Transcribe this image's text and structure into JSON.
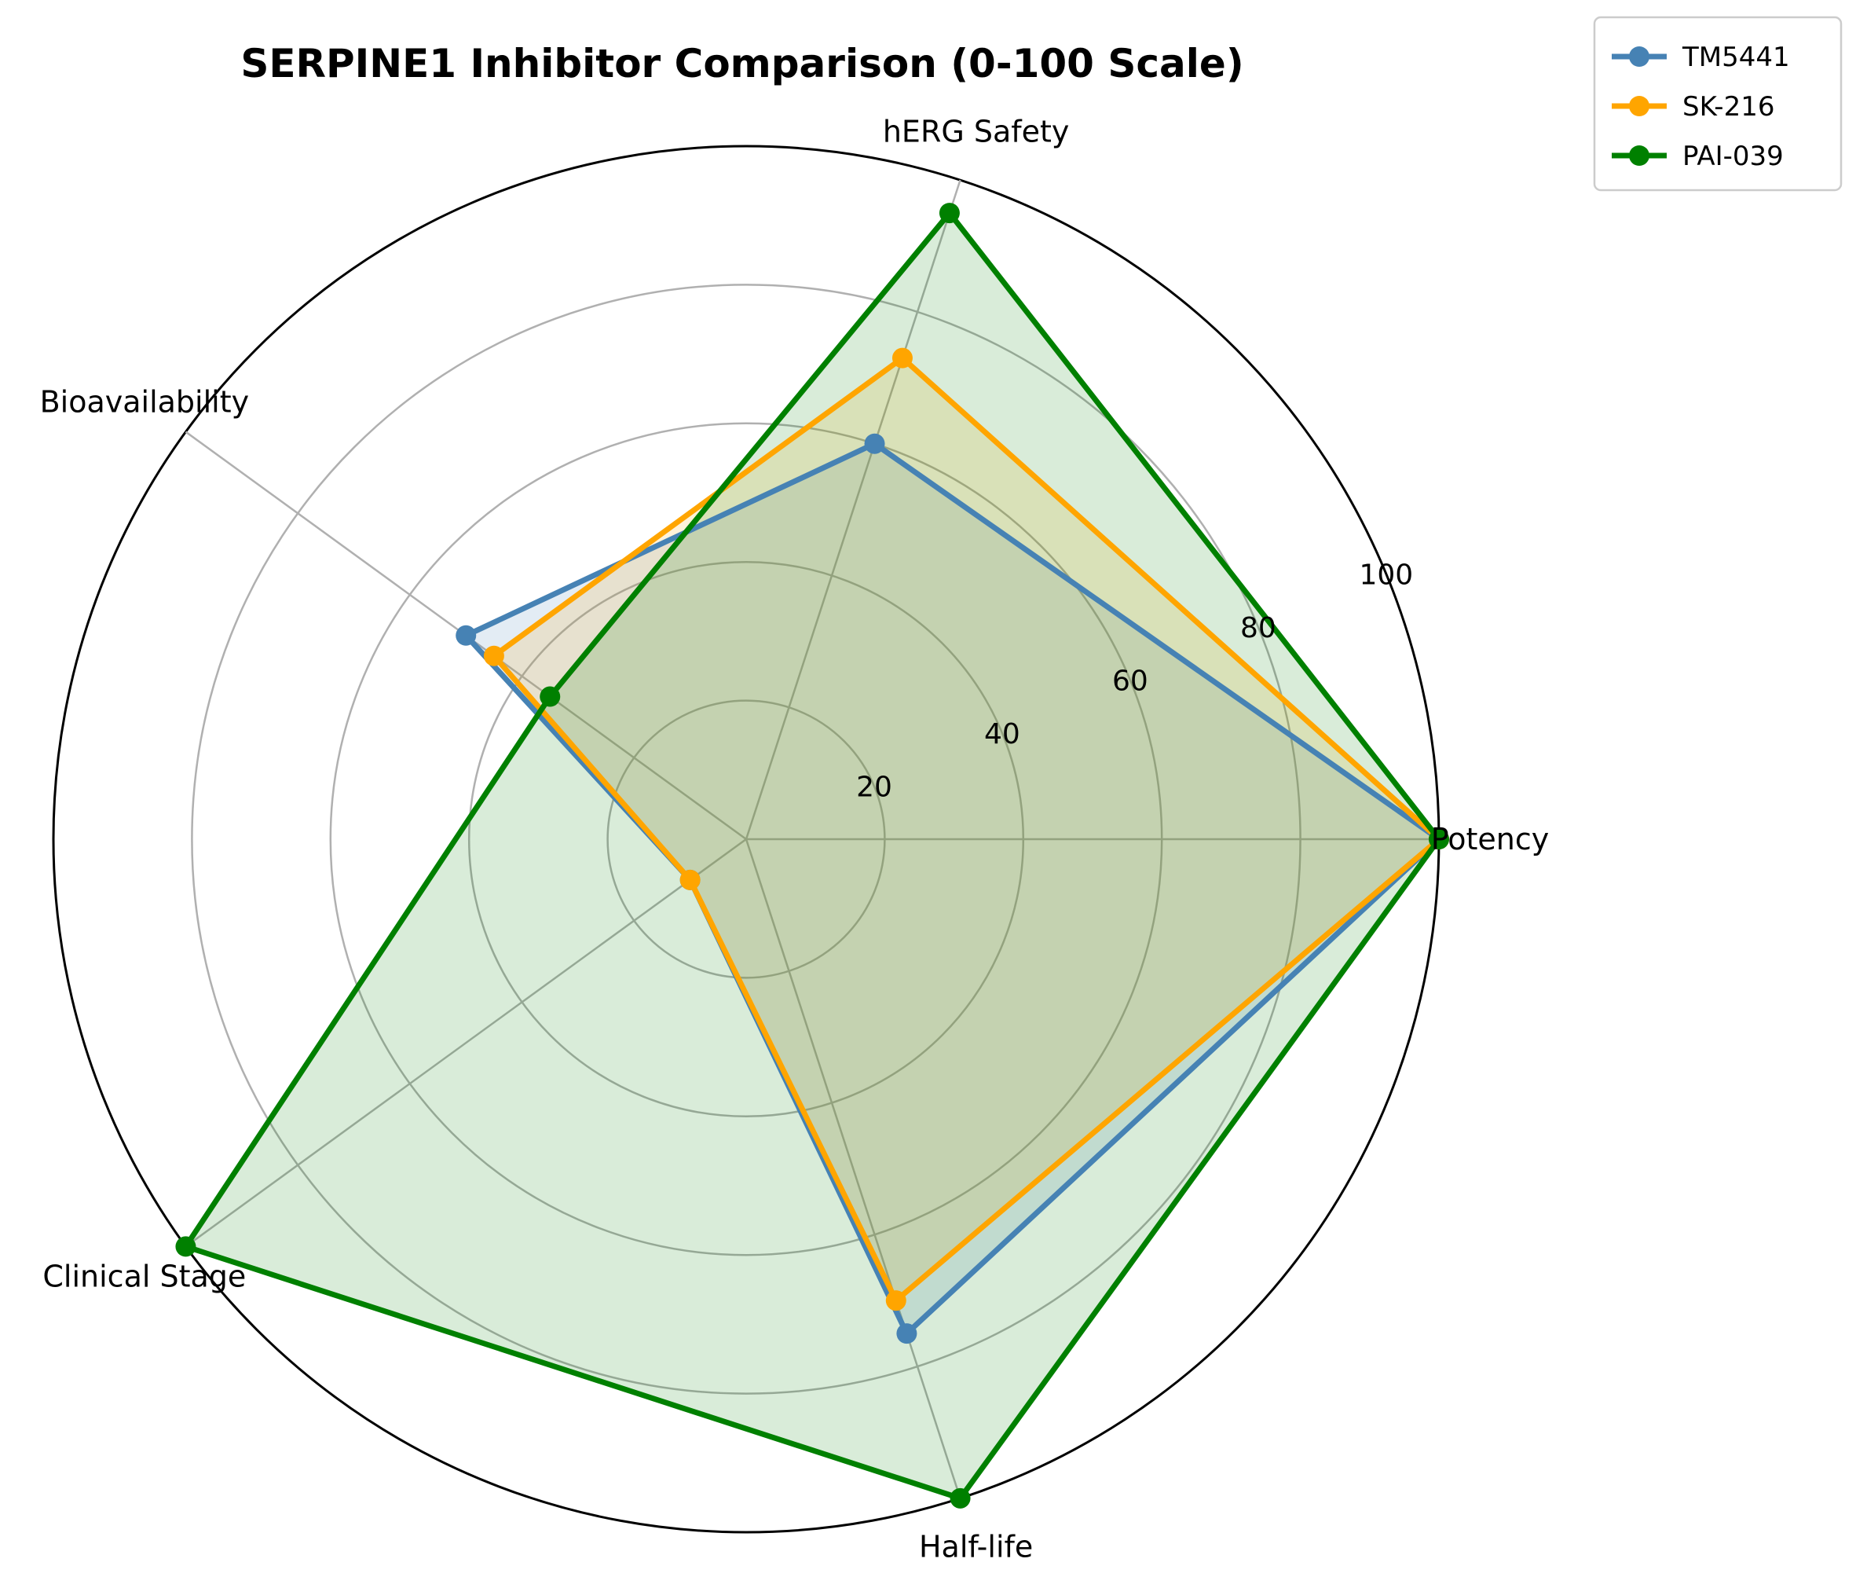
{
  "chart_data": {
    "type": "radar",
    "title": "SERPINE1 Inhibitor Comparison (0-100 Scale)",
    "axes": [
      "Potency",
      "hERG Safety",
      "Bioavailability",
      "Clinical Stage",
      "Half-life"
    ],
    "rlim": [
      0,
      100
    ],
    "rticks": [
      20,
      40,
      60,
      80,
      100
    ],
    "grid": true,
    "legend_position": "top-right",
    "series": [
      {
        "name": "TM5441",
        "color": "#4682b4",
        "values": [
          100,
          60,
          50,
          10,
          75
        ]
      },
      {
        "name": "SK-216",
        "color": "#ffa500",
        "values": [
          100,
          73,
          45,
          10,
          70
        ]
      },
      {
        "name": "PAI-039",
        "color": "#008000",
        "values": [
          100,
          95,
          35,
          100,
          100
        ]
      }
    ]
  }
}
